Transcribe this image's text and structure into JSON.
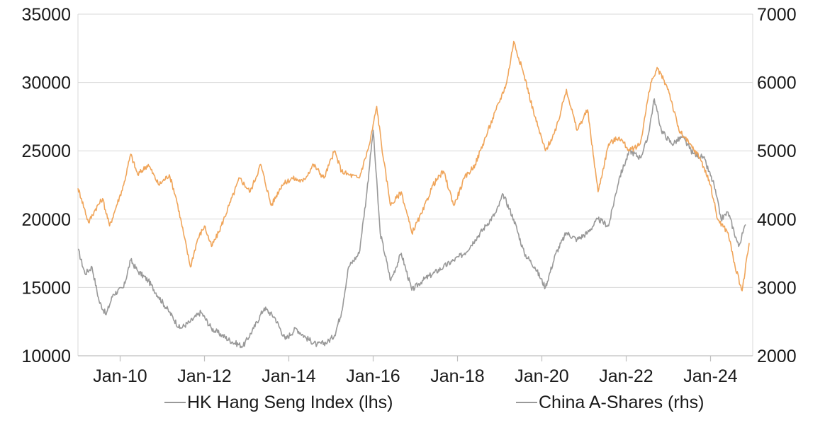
{
  "chart_data": {
    "type": "line",
    "title": "",
    "x_axis": {
      "tick_labels": [
        "Jan-10",
        "Jan-12",
        "Jan-14",
        "Jan-16",
        "Jan-18",
        "Jan-20",
        "Jan-22",
        "Jan-24"
      ],
      "range": [
        "2009-01",
        "2024-12"
      ]
    },
    "y_left": {
      "min": 10000,
      "max": 35000,
      "ticks": [
        10000,
        15000,
        20000,
        25000,
        30000,
        35000
      ],
      "tick_labels": [
        "10000",
        "15000",
        "20000",
        "25000",
        "30000",
        "35000"
      ]
    },
    "y_right": {
      "min": 2000,
      "max": 7000,
      "ticks": [
        2000,
        3000,
        4000,
        5000,
        6000,
        7000
      ],
      "tick_labels": [
        "2000",
        "3000",
        "4000",
        "5000",
        "6000",
        "7000"
      ]
    },
    "grid": "horizontal",
    "legend_position": "bottom",
    "series": [
      {
        "name": "HK Hang Seng Index (lhs)",
        "axis": "left",
        "color": "#999999",
        "points": [
          [
            "2009-01",
            17800
          ],
          [
            "2009-03",
            16000
          ],
          [
            "2009-05",
            16500
          ],
          [
            "2009-07",
            14000
          ],
          [
            "2009-09",
            13000
          ],
          [
            "2009-11",
            14500
          ],
          [
            "2010-02",
            15000
          ],
          [
            "2010-04",
            17000
          ],
          [
            "2010-06",
            16200
          ],
          [
            "2010-09",
            15500
          ],
          [
            "2010-12",
            14300
          ],
          [
            "2011-03",
            13200
          ],
          [
            "2011-06",
            12000
          ],
          [
            "2011-09",
            12500
          ],
          [
            "2011-12",
            13200
          ],
          [
            "2012-03",
            12000
          ],
          [
            "2012-06",
            11500
          ],
          [
            "2012-09",
            11000
          ],
          [
            "2012-12",
            10700
          ],
          [
            "2013-03",
            12000
          ],
          [
            "2013-06",
            13500
          ],
          [
            "2013-09",
            12800
          ],
          [
            "2013-12",
            11200
          ],
          [
            "2014-03",
            12000
          ],
          [
            "2014-06",
            11300
          ],
          [
            "2014-09",
            10800
          ],
          [
            "2014-12",
            11000
          ],
          [
            "2015-02",
            11500
          ],
          [
            "2015-04",
            13200
          ],
          [
            "2015-06",
            16500
          ],
          [
            "2015-09",
            17500
          ],
          [
            "2015-11",
            21500
          ],
          [
            "2016-01",
            26500
          ],
          [
            "2016-03",
            19000
          ],
          [
            "2016-06",
            15500
          ],
          [
            "2016-09",
            17500
          ],
          [
            "2016-12",
            14800
          ],
          [
            "2017-03",
            15500
          ],
          [
            "2017-06",
            16000
          ],
          [
            "2017-09",
            16500
          ],
          [
            "2017-12",
            17000
          ],
          [
            "2018-03",
            17500
          ],
          [
            "2018-06",
            18500
          ],
          [
            "2018-09",
            19500
          ],
          [
            "2018-12",
            20500
          ],
          [
            "2019-02",
            21800
          ],
          [
            "2019-05",
            20000
          ],
          [
            "2019-08",
            17500
          ],
          [
            "2019-11",
            16500
          ],
          [
            "2020-02",
            15000
          ],
          [
            "2020-05",
            17500
          ],
          [
            "2020-08",
            19000
          ],
          [
            "2020-11",
            18500
          ],
          [
            "2021-02",
            19000
          ],
          [
            "2021-05",
            20000
          ],
          [
            "2021-08",
            19500
          ],
          [
            "2021-11",
            23000
          ],
          [
            "2022-02",
            25000
          ],
          [
            "2022-05",
            24500
          ],
          [
            "2022-07",
            25800
          ],
          [
            "2022-09",
            28800
          ],
          [
            "2022-11",
            26500
          ],
          [
            "2023-02",
            25500
          ],
          [
            "2023-05",
            26000
          ],
          [
            "2023-08",
            24800
          ],
          [
            "2023-11",
            24500
          ],
          [
            "2024-02",
            22500
          ],
          [
            "2024-04",
            20000
          ],
          [
            "2024-06",
            20500
          ],
          [
            "2024-09",
            18000
          ],
          [
            "2024-11",
            19600
          ]
        ]
      },
      {
        "name": "China A-Shares (rhs)",
        "axis": "right",
        "color": "#f0a55a",
        "points": [
          [
            "2009-01",
            4450
          ],
          [
            "2009-02",
            4300
          ],
          [
            "2009-04",
            3950
          ],
          [
            "2009-06",
            4150
          ],
          [
            "2009-08",
            4300
          ],
          [
            "2009-10",
            3900
          ],
          [
            "2009-12",
            4200
          ],
          [
            "2010-02",
            4500
          ],
          [
            "2010-04",
            4950
          ],
          [
            "2010-06",
            4650
          ],
          [
            "2010-09",
            4800
          ],
          [
            "2010-12",
            4500
          ],
          [
            "2011-03",
            4650
          ],
          [
            "2011-05",
            4300
          ],
          [
            "2011-07",
            3800
          ],
          [
            "2011-09",
            3300
          ],
          [
            "2011-11",
            3700
          ],
          [
            "2012-01",
            3900
          ],
          [
            "2012-03",
            3600
          ],
          [
            "2012-05",
            3800
          ],
          [
            "2012-08",
            4200
          ],
          [
            "2012-11",
            4600
          ],
          [
            "2013-02",
            4400
          ],
          [
            "2013-05",
            4800
          ],
          [
            "2013-08",
            4200
          ],
          [
            "2013-11",
            4500
          ],
          [
            "2014-02",
            4600
          ],
          [
            "2014-05",
            4550
          ],
          [
            "2014-08",
            4800
          ],
          [
            "2014-11",
            4600
          ],
          [
            "2015-02",
            5000
          ],
          [
            "2015-04",
            4700
          ],
          [
            "2015-06",
            4650
          ],
          [
            "2015-09",
            4600
          ],
          [
            "2015-12",
            5100
          ],
          [
            "2016-02",
            5650
          ],
          [
            "2016-04",
            4850
          ],
          [
            "2016-06",
            4200
          ],
          [
            "2016-09",
            4400
          ],
          [
            "2016-12",
            3800
          ],
          [
            "2017-03",
            4100
          ],
          [
            "2017-06",
            4500
          ],
          [
            "2017-09",
            4700
          ],
          [
            "2017-12",
            4200
          ],
          [
            "2018-03",
            4600
          ],
          [
            "2018-06",
            4800
          ],
          [
            "2018-09",
            5200
          ],
          [
            "2018-12",
            5600
          ],
          [
            "2019-03",
            6000
          ],
          [
            "2019-05",
            6600
          ],
          [
            "2019-08",
            6100
          ],
          [
            "2019-11",
            5500
          ],
          [
            "2020-02",
            5000
          ],
          [
            "2020-05",
            5300
          ],
          [
            "2020-08",
            5900
          ],
          [
            "2020-11",
            5300
          ],
          [
            "2021-02",
            5600
          ],
          [
            "2021-05",
            4400
          ],
          [
            "2021-08",
            5100
          ],
          [
            "2021-11",
            5200
          ],
          [
            "2022-02",
            5000
          ],
          [
            "2022-05",
            5100
          ],
          [
            "2022-08",
            6000
          ],
          [
            "2022-10",
            6200
          ],
          [
            "2023-01",
            5900
          ],
          [
            "2023-04",
            5300
          ],
          [
            "2023-07",
            5100
          ],
          [
            "2023-10",
            4900
          ],
          [
            "2024-01",
            4500
          ],
          [
            "2024-03",
            4000
          ],
          [
            "2024-06",
            3800
          ],
          [
            "2024-08",
            3300
          ],
          [
            "2024-10",
            2950
          ],
          [
            "2024-12",
            3650
          ]
        ]
      }
    ]
  }
}
